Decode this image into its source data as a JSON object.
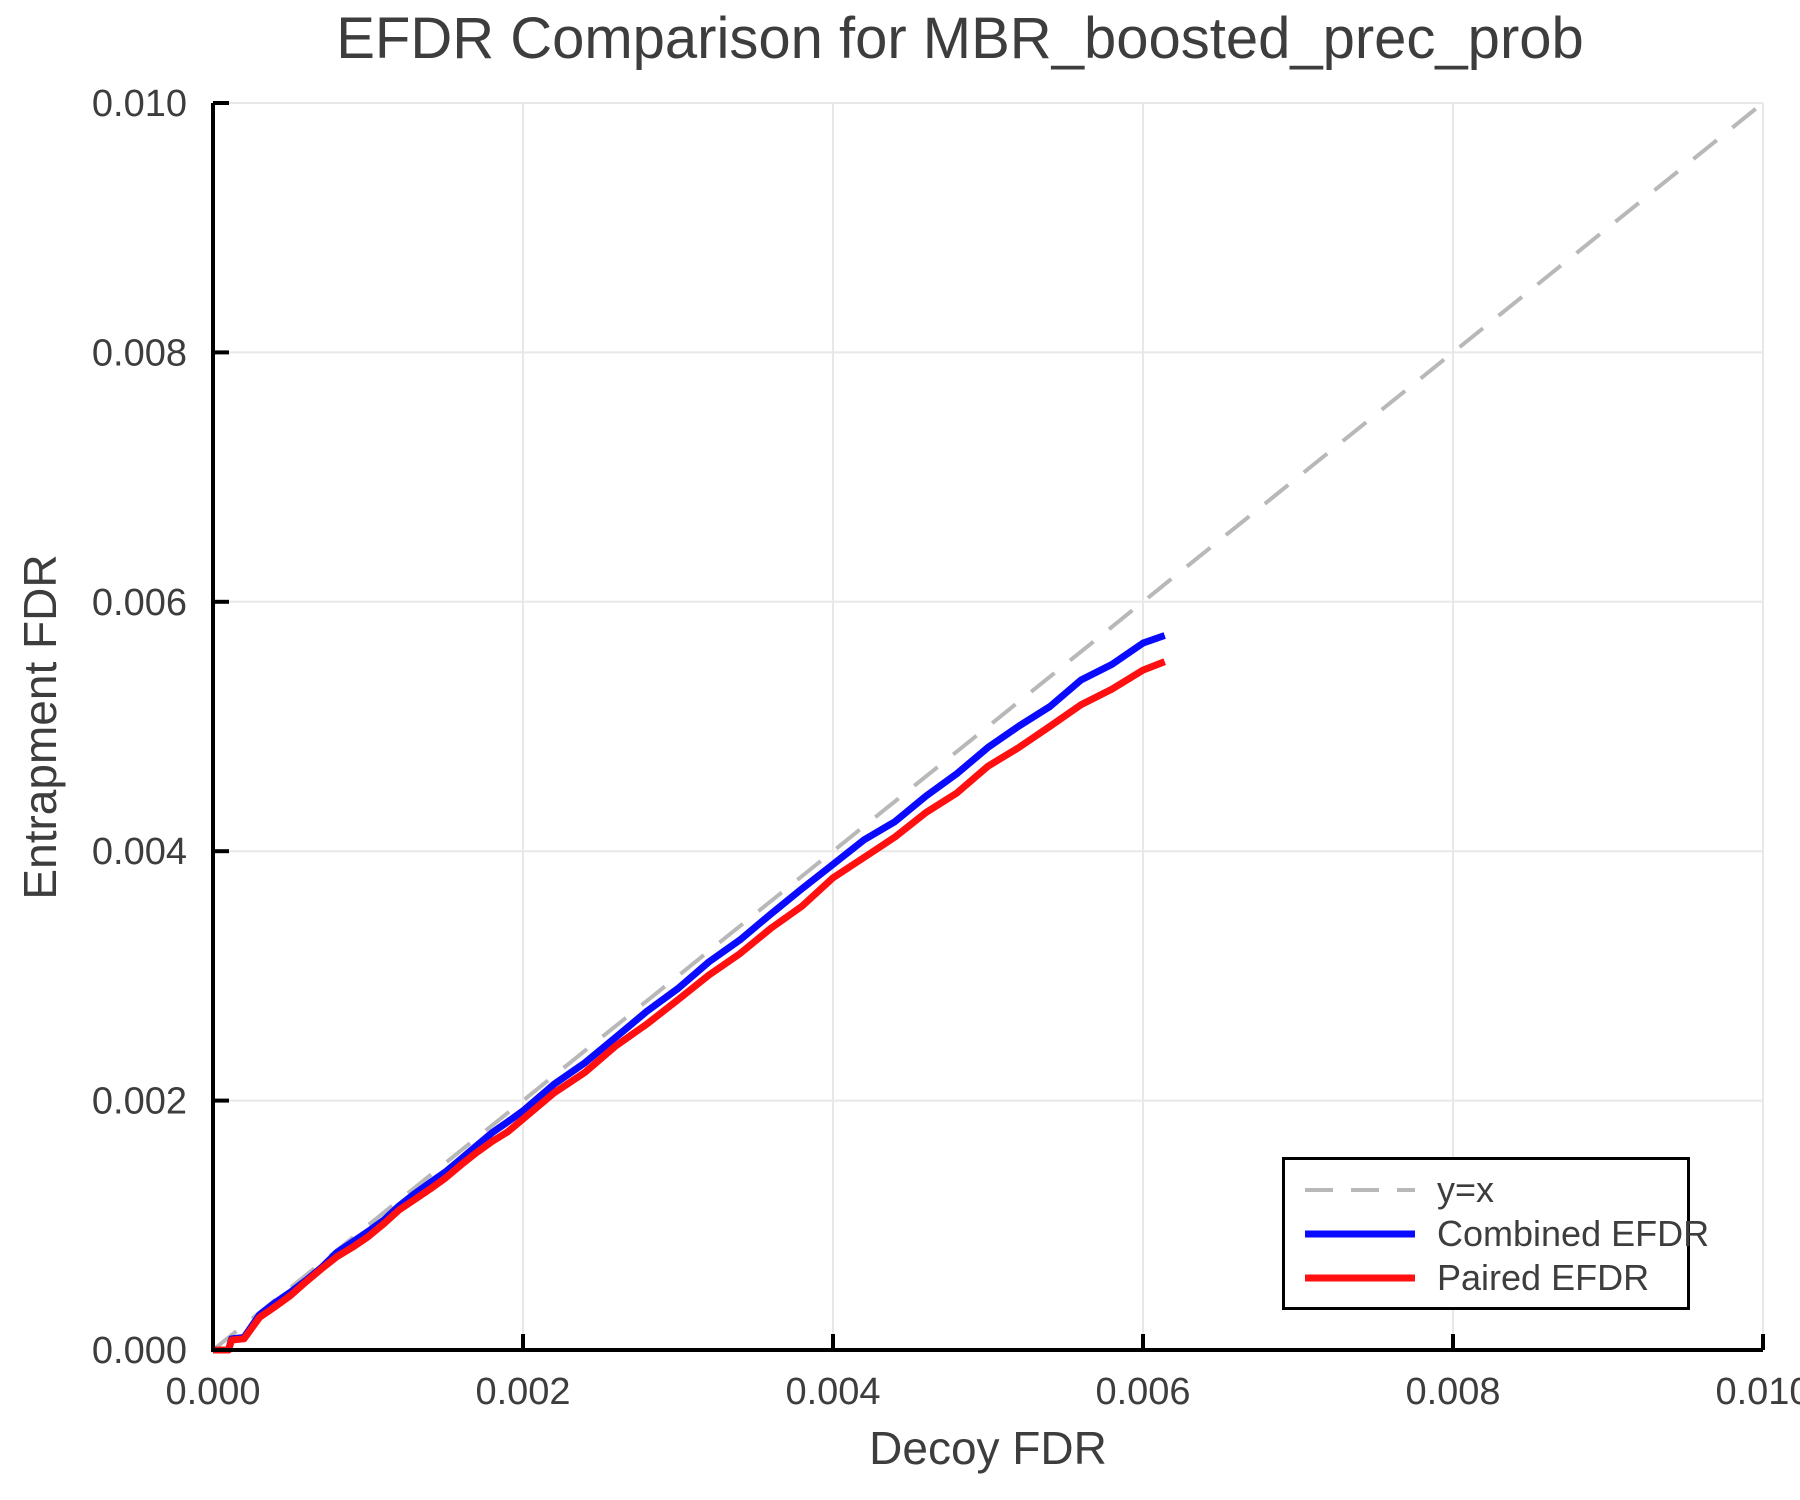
{
  "chart_data": {
    "type": "line",
    "title": "EFDR Comparison for MBR_boosted_prec_prob",
    "xlabel": "Decoy FDR",
    "ylabel": "Entrapment FDR",
    "xlim": [
      0.0,
      0.01
    ],
    "ylim": [
      0.0,
      0.01
    ],
    "xticks": [
      0.0,
      0.002,
      0.004,
      0.006,
      0.008,
      0.01
    ],
    "xtick_labels": [
      "0.000",
      "0.002",
      "0.004",
      "0.006",
      "0.008",
      "0.010"
    ],
    "yticks": [
      0.0,
      0.002,
      0.004,
      0.006,
      0.008,
      0.01
    ],
    "ytick_labels": [
      "0.000",
      "0.002",
      "0.004",
      "0.006",
      "0.008",
      "0.010"
    ],
    "grid": true,
    "grid_color": "#e8e8e8",
    "axis_color": "#000000",
    "text_color": "#3d3d3d",
    "legend_position": "lower right",
    "series": [
      {
        "name": "y=x",
        "dashed": true,
        "color": "#b8b8b8",
        "x": [
          0.0,
          0.01
        ],
        "y": [
          0.0,
          0.01
        ]
      },
      {
        "name": "Combined EFDR",
        "dashed": false,
        "color": "#0a0aff",
        "x": [
          0.0,
          0.0001,
          0.00012,
          0.0002,
          0.0003,
          0.0004,
          0.0005,
          0.0006,
          0.0007,
          0.0008,
          0.0009,
          0.001,
          0.0011,
          0.0012,
          0.0013,
          0.0014,
          0.0015,
          0.0016,
          0.0017,
          0.0018,
          0.0019,
          0.002,
          0.0022,
          0.0024,
          0.0026,
          0.0028,
          0.003,
          0.0032,
          0.0034,
          0.0036,
          0.0038,
          0.004,
          0.0042,
          0.0044,
          0.0046,
          0.0048,
          0.005,
          0.0052,
          0.0054,
          0.0056,
          0.0058,
          0.006,
          0.00614
        ],
        "y": [
          0.0,
          0.0,
          9e-05,
          0.0001,
          0.00027,
          0.00037,
          0.00047,
          0.00057,
          0.00066,
          0.00077,
          0.00086,
          0.00096,
          0.00105,
          0.00115,
          0.00124,
          0.00134,
          0.00144,
          0.00154,
          0.00163,
          0.00173,
          0.00183,
          0.00193,
          0.00212,
          0.00231,
          0.00251,
          0.00271,
          0.00291,
          0.0031,
          0.0033,
          0.00349,
          0.0037,
          0.0039,
          0.00408,
          0.00425,
          0.00443,
          0.00463,
          0.00483,
          0.005,
          0.00517,
          0.00536,
          0.00551,
          0.00566,
          0.00573
        ]
      },
      {
        "name": "Paired EFDR",
        "dashed": false,
        "color": "#ff0f0f",
        "x": [
          0.0,
          0.0001,
          0.00012,
          0.0002,
          0.0003,
          0.0004,
          0.0005,
          0.0006,
          0.0007,
          0.0008,
          0.0009,
          0.001,
          0.0011,
          0.0012,
          0.0013,
          0.0014,
          0.0015,
          0.0016,
          0.0017,
          0.0018,
          0.0019,
          0.002,
          0.0022,
          0.0024,
          0.0026,
          0.0028,
          0.003,
          0.0032,
          0.0034,
          0.0036,
          0.0038,
          0.004,
          0.0042,
          0.0044,
          0.0046,
          0.0048,
          0.005,
          0.0052,
          0.0054,
          0.0056,
          0.0058,
          0.006,
          0.00614
        ],
        "y": [
          0.0,
          0.0,
          8e-05,
          9e-05,
          0.00025,
          0.00035,
          0.00045,
          0.00055,
          0.00064,
          0.00074,
          0.00083,
          0.00092,
          0.00101,
          0.00111,
          0.0012,
          0.0013,
          0.00139,
          0.00148,
          0.00157,
          0.00167,
          0.00176,
          0.00186,
          0.00205,
          0.00224,
          0.00243,
          0.00262,
          0.00281,
          0.003,
          0.00319,
          0.00337,
          0.00357,
          0.00378,
          0.00395,
          0.00412,
          0.0043,
          0.00448,
          0.00467,
          0.00484,
          0.005,
          0.00517,
          0.00531,
          0.00544,
          0.00552
        ]
      }
    ]
  },
  "legend": {
    "items": [
      {
        "label": "y=x"
      },
      {
        "label": "Combined EFDR"
      },
      {
        "label": "Paired EFDR"
      }
    ]
  }
}
